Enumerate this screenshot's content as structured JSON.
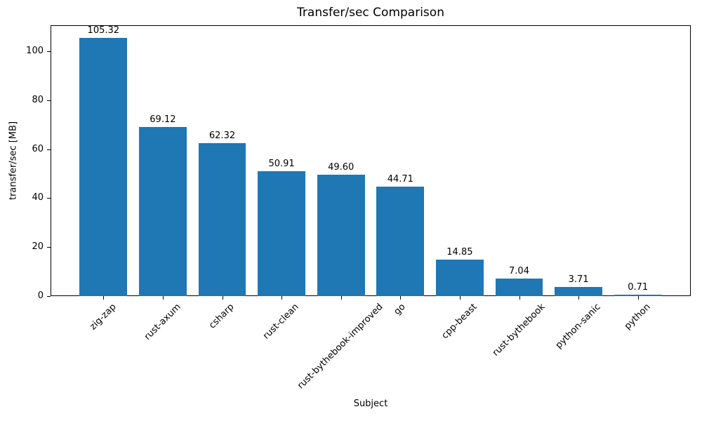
{
  "chart_data": {
    "type": "bar",
    "title": "Transfer/sec Comparison",
    "xlabel": "Subject",
    "ylabel": "transfer/sec [MB]",
    "categories": [
      "zig-zap",
      "rust-axum",
      "csharp",
      "rust-clean",
      "rust-bythebook-improved",
      "go",
      "cpp-beast",
      "rust-bythebook",
      "python-sanic",
      "python"
    ],
    "values": [
      105.32,
      69.12,
      62.32,
      50.91,
      49.6,
      44.71,
      14.85,
      7.04,
      3.71,
      0.71
    ],
    "value_label_decimals": 2,
    "yticks": [
      0,
      20,
      40,
      60,
      80,
      100
    ],
    "ylim": [
      0,
      110.6
    ],
    "bar_color": "#1f77b4",
    "grid": false,
    "legend": "none",
    "x_tick_rotation_deg": 45
  }
}
